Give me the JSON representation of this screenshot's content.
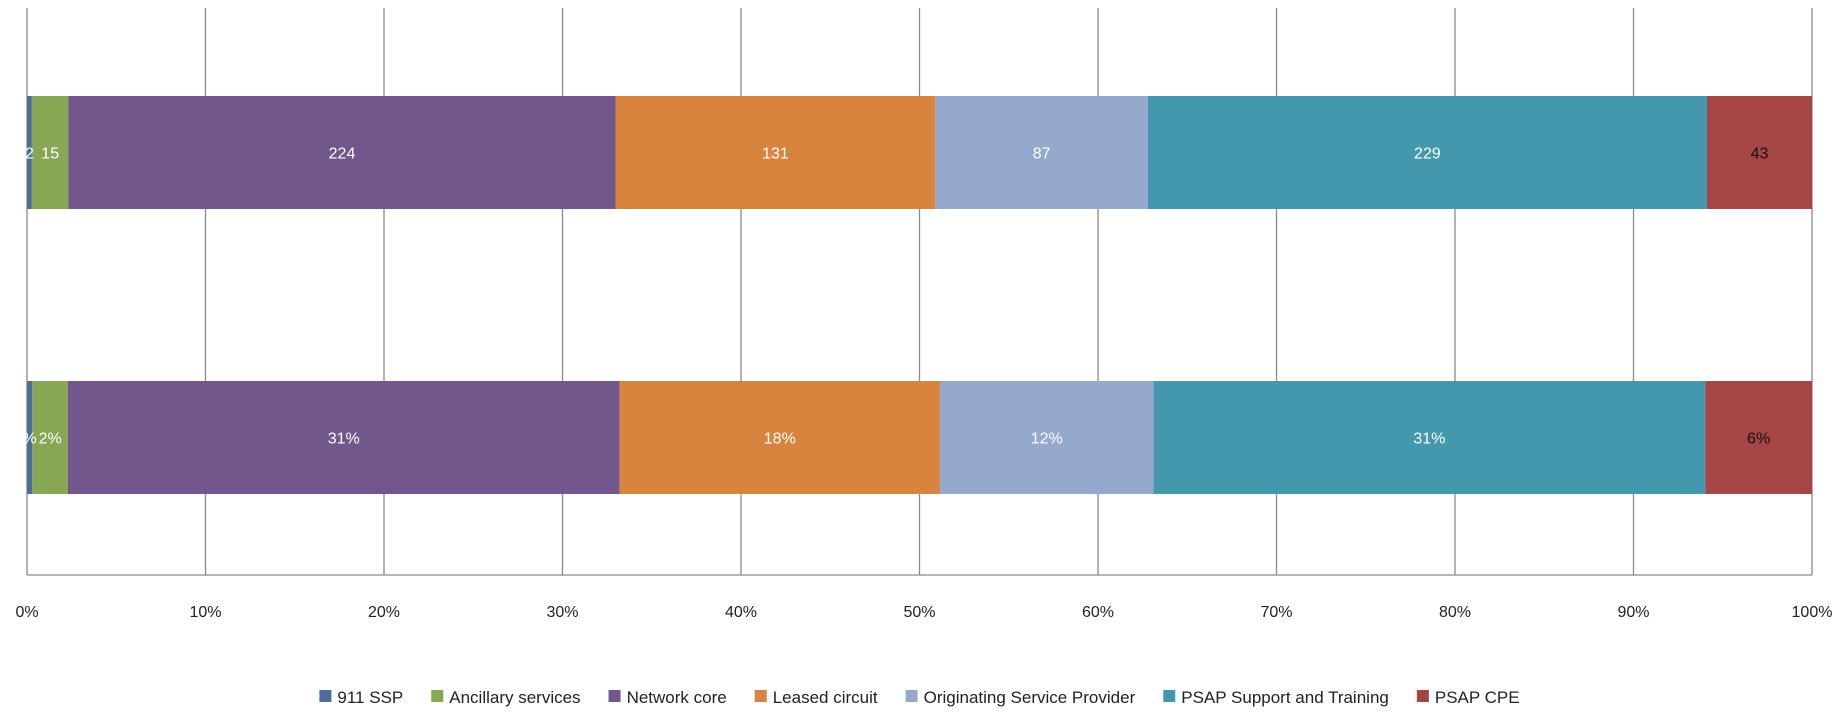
{
  "chart_data": {
    "type": "bar",
    "orientation": "horizontal",
    "stacking": "percent",
    "xlim": [
      0,
      100
    ],
    "x_ticks": [
      "0%",
      "10%",
      "20%",
      "30%",
      "40%",
      "50%",
      "60%",
      "70%",
      "80%",
      "90%",
      "100%"
    ],
    "grid": "vertical",
    "legend_position": "bottom",
    "series": [
      {
        "name": "911 SSP",
        "color": "#4a6e99",
        "values": [
          2,
          0.3
        ],
        "labels": [
          "2",
          "%"
        ],
        "label_color": "#ffffff"
      },
      {
        "name": "Ancillary services",
        "color": "#88a755",
        "values": [
          15,
          2
        ],
        "labels": [
          "15",
          "2%"
        ],
        "label_color": "#ffffff"
      },
      {
        "name": "Network core",
        "color": "#71578c",
        "values": [
          224,
          31
        ],
        "labels": [
          "224",
          "31%"
        ],
        "label_color": "#ffffff"
      },
      {
        "name": "Leased circuit",
        "color": "#d9843e",
        "values": [
          131,
          18
        ],
        "labels": [
          "131",
          "18%"
        ],
        "label_color": "#ffffff"
      },
      {
        "name": "Originating Service Provider",
        "color": "#95a9cf",
        "values": [
          87,
          12
        ],
        "labels": [
          "87",
          "12%"
        ],
        "label_color": "#ffffff"
      },
      {
        "name": "PSAP Support and Training",
        "color": "#4398ae",
        "values": [
          229,
          31
        ],
        "labels": [
          "229",
          "31%"
        ],
        "label_color": "#ffffff"
      },
      {
        "name": "PSAP CPE",
        "color": "#a54546",
        "values": [
          43,
          6
        ],
        "labels": [
          "43",
          "6%"
        ],
        "label_color": "#111111"
      }
    ]
  }
}
